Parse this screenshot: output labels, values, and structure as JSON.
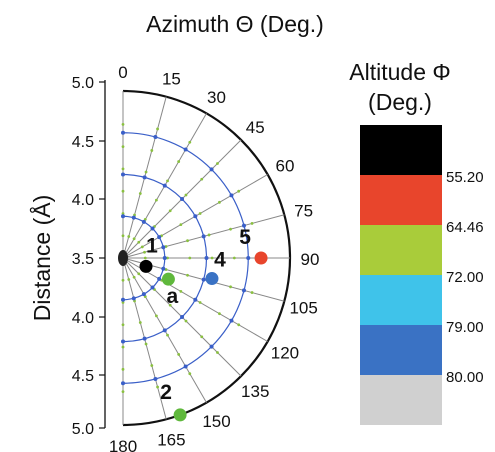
{
  "chart_data": {
    "type": "scatter",
    "projection": "polar-half",
    "title": "Azimuth Θ (Deg.)",
    "ylabel": "Distance (Å)",
    "angle_ticks": [
      "0",
      "15",
      "30",
      "45",
      "60",
      "75",
      "90",
      "105",
      "120",
      "135",
      "150",
      "165",
      "180"
    ],
    "radial_ticks": [
      "5.0",
      "4.5",
      "4.0",
      "3.5",
      "4.0",
      "4.5",
      "5.0"
    ],
    "radial_range": [
      3.5,
      5.0
    ],
    "grid": true,
    "legend": {
      "title_line1": "Altitude Φ",
      "title_line2": "(Deg.)",
      "position": "right",
      "bins": [
        {
          "color": "#000000",
          "label": "55.20"
        },
        {
          "color": "#e8452c",
          "label": "64.46"
        },
        {
          "color": "#a9cc3a",
          "label": "72.00"
        },
        {
          "color": "#3fc3ea",
          "label": "79.00"
        },
        {
          "color": "#3a72c4",
          "label": "80.00"
        },
        {
          "color": "#d0d0d0",
          "label": ""
        }
      ]
    },
    "points": [
      {
        "label": "1",
        "theta": 110,
        "r": 3.72,
        "color": "#000000"
      },
      {
        "label": "a",
        "theta": 115,
        "r": 3.95,
        "color": "#5fb83c"
      },
      {
        "label": "4",
        "theta": 103,
        "r": 4.32,
        "color": "#3a72c4"
      },
      {
        "label": "5",
        "theta": 90,
        "r": 4.74,
        "color": "#e8452c"
      },
      {
        "label": "2",
        "theta": 160,
        "r": 5.0,
        "color": "#5fb83c"
      }
    ]
  }
}
